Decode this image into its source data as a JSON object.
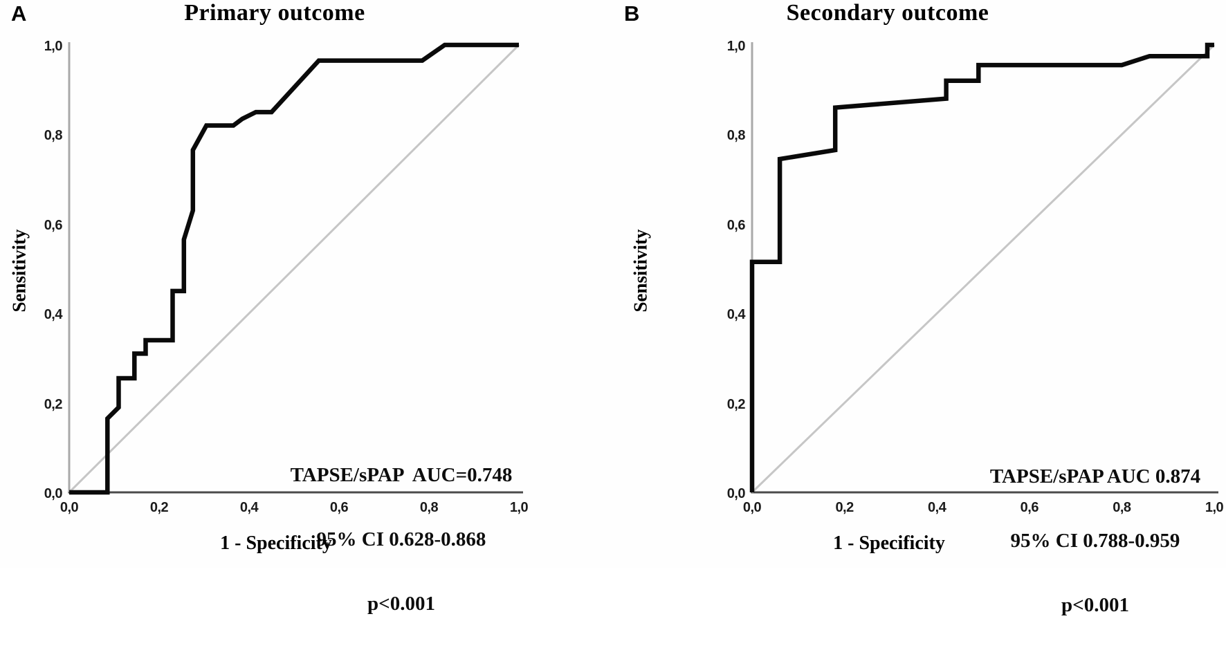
{
  "figure": {
    "panels": [
      {
        "letter": "A",
        "title": "Primary outcome",
        "y_axis_title": "Sensitivity",
        "x_axis_title": "1 - Specificity",
        "x_ticks": [
          "0,0",
          "0,2",
          "0,4",
          "0,6",
          "0,8",
          "1,0"
        ],
        "y_ticks": [
          "0,0",
          "0,2",
          "0,4",
          "0,6",
          "0,8",
          "1,0"
        ],
        "annotation": [
          "TAPSE/sPAP  AUC=0.748",
          "95% CI 0.628-0.868",
          "p<0.001"
        ]
      },
      {
        "letter": "B",
        "title": "Secondary outcome",
        "y_axis_title": "Sensitivity",
        "x_axis_title": "1 - Specificity",
        "x_ticks": [
          "0,0",
          "0,2",
          "0,4",
          "0,6",
          "0,8",
          "1,0"
        ],
        "y_ticks": [
          "0,0",
          "0,2",
          "0,4",
          "0,6",
          "0,8",
          "1,0"
        ],
        "annotation": [
          "TAPSE/sPAP AUC 0.874",
          "95% CI 0.788-0.959",
          "p<0.001"
        ]
      }
    ]
  },
  "colors": {
    "curve": "#0a0a0a",
    "diagonal": "#c6c6c6",
    "x_axis": "#4a4a4a",
    "y_axis": "#a9a9a9",
    "background": "#fefefe",
    "text": "#111111"
  },
  "chart_data": [
    {
      "type": "line",
      "subtype": "roc-curve",
      "title": "Primary outcome",
      "xlabel": "1 - Specificity",
      "ylabel": "Sensitivity",
      "xlim": [
        0,
        1
      ],
      "ylim": [
        0,
        1
      ],
      "grid": false,
      "decimal_separator": ",",
      "x_tick_values": [
        0,
        0.2,
        0.4,
        0.6,
        0.8,
        1.0
      ],
      "y_tick_values": [
        0,
        0.2,
        0.4,
        0.6,
        0.8,
        1.0
      ],
      "auc": 0.748,
      "ci_95": "0.628-0.868",
      "p_value": "<0.001",
      "marker_label": "TAPSE/sPAP",
      "series": [
        {
          "name": "TAPSE/sPAP ROC curve",
          "points": [
            [
              0,
              0
            ],
            [
              0.085,
              0
            ],
            [
              0.085,
              0.165
            ],
            [
              0.11,
              0.19
            ],
            [
              0.11,
              0.255
            ],
            [
              0.145,
              0.255
            ],
            [
              0.145,
              0.31
            ],
            [
              0.17,
              0.31
            ],
            [
              0.17,
              0.34
            ],
            [
              0.23,
              0.34
            ],
            [
              0.23,
              0.45
            ],
            [
              0.255,
              0.45
            ],
            [
              0.255,
              0.565
            ],
            [
              0.275,
              0.63
            ],
            [
              0.275,
              0.765
            ],
            [
              0.305,
              0.82
            ],
            [
              0.365,
              0.82
            ],
            [
              0.385,
              0.835
            ],
            [
              0.415,
              0.85
            ],
            [
              0.45,
              0.85
            ],
            [
              0.555,
              0.965
            ],
            [
              0.785,
              0.965
            ],
            [
              0.835,
              1
            ],
            [
              1,
              1
            ]
          ]
        },
        {
          "name": "reference diagonal",
          "points": [
            [
              0,
              0
            ],
            [
              1,
              1
            ]
          ]
        }
      ]
    },
    {
      "type": "line",
      "subtype": "roc-curve",
      "title": "Secondary outcome",
      "xlabel": "1 - Specificity",
      "ylabel": "Sensitivity",
      "xlim": [
        0,
        1
      ],
      "ylim": [
        0,
        1
      ],
      "grid": false,
      "decimal_separator": ",",
      "x_tick_values": [
        0,
        0.2,
        0.4,
        0.6,
        0.8,
        1.0
      ],
      "y_tick_values": [
        0,
        0.2,
        0.4,
        0.6,
        0.8,
        1.0
      ],
      "auc": 0.874,
      "ci_95": "0.788-0.959",
      "p_value": "<0.001",
      "marker_label": "TAPSE/sPAP",
      "series": [
        {
          "name": "TAPSE/sPAP ROC curve",
          "points": [
            [
              0,
              0
            ],
            [
              0,
              0.515
            ],
            [
              0.06,
              0.515
            ],
            [
              0.06,
              0.745
            ],
            [
              0.18,
              0.765
            ],
            [
              0.18,
              0.86
            ],
            [
              0.42,
              0.88
            ],
            [
              0.42,
              0.92
            ],
            [
              0.49,
              0.92
            ],
            [
              0.49,
              0.955
            ],
            [
              0.8,
              0.955
            ],
            [
              0.86,
              0.975
            ],
            [
              0.985,
              0.975
            ],
            [
              0.985,
              1
            ],
            [
              1,
              1
            ]
          ]
        },
        {
          "name": "reference diagonal",
          "points": [
            [
              0,
              0
            ],
            [
              1,
              1
            ]
          ]
        }
      ]
    }
  ]
}
